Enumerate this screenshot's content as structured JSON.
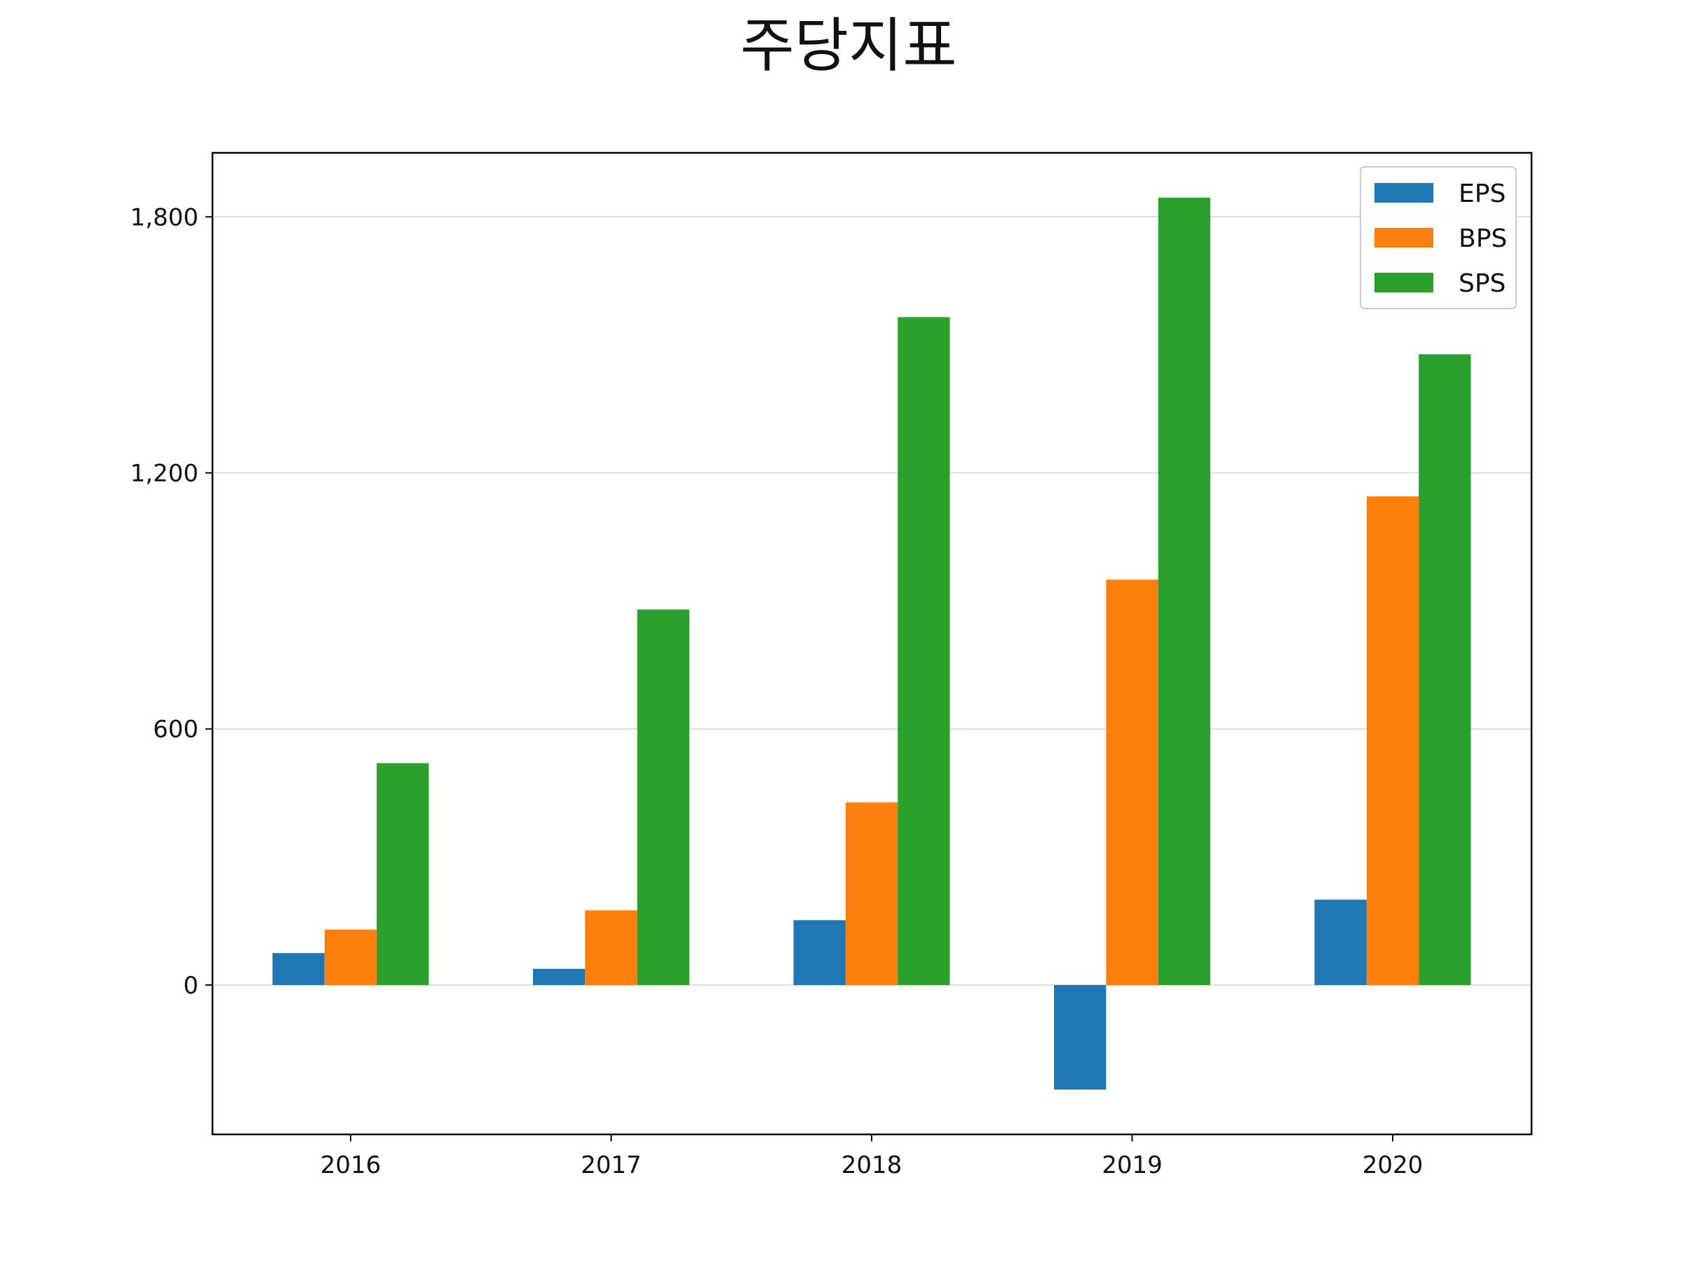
{
  "chart_data": {
    "type": "bar",
    "title": "주당지표",
    "xlabel": "",
    "ylabel": "",
    "categories": [
      "2016",
      "2017",
      "2018",
      "2019",
      "2020"
    ],
    "series": [
      {
        "name": "EPS",
        "color": "#1f77b4",
        "values": [
          75,
          38,
          152,
          -245,
          200
        ]
      },
      {
        "name": "BPS",
        "color": "#ff7f0e",
        "values": [
          130,
          175,
          428,
          950,
          1145
        ]
      },
      {
        "name": "SPS",
        "color": "#2ca02c",
        "values": [
          520,
          880,
          1565,
          1845,
          1478
        ]
      }
    ],
    "ylim": [
      -350,
      1950
    ],
    "yticks": [
      0,
      600,
      1200,
      1800
    ],
    "ytick_labels": [
      "0",
      "600",
      "1,200",
      "1,800"
    ],
    "grid": "y",
    "legend": "top-right"
  }
}
